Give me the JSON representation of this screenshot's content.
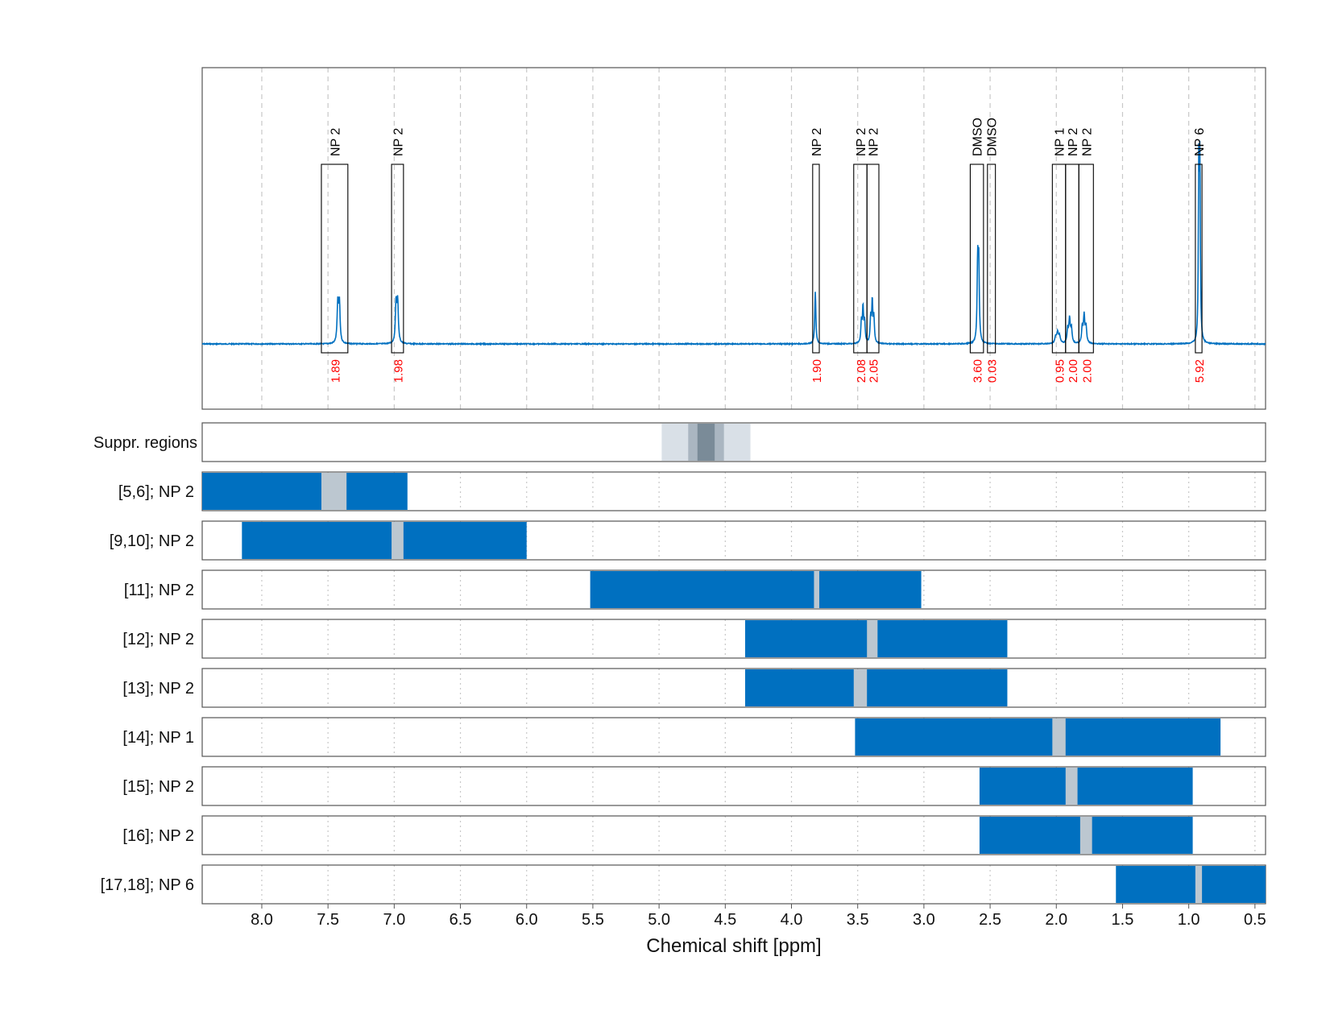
{
  "chart_data": {
    "type": "nmr-spectrum-with-region-bars",
    "xlabel": "Chemical shift [ppm]",
    "xlim": [
      8.45,
      0.42
    ],
    "x_ticks": [
      "8.0",
      "7.5",
      "7.0",
      "6.5",
      "6.0",
      "5.5",
      "5.0",
      "4.5",
      "4.0",
      "3.5",
      "3.0",
      "2.5",
      "2.0",
      "1.5",
      "1.0",
      "0.5"
    ],
    "tick_values": [
      8.0,
      7.5,
      7.0,
      6.5,
      6.0,
      5.5,
      5.0,
      4.5,
      4.0,
      3.5,
      3.0,
      2.5,
      2.0,
      1.5,
      1.0,
      0.5
    ],
    "grid": true,
    "colors": {
      "signal": "#0070c0",
      "integral": "#ff0000",
      "box": "#000000",
      "peak_marker": "#bcc7d0",
      "suppr_light": "#d9e0e7",
      "suppr_mid": "#aab6c1",
      "suppr_dark": "#7a8b98"
    },
    "spectrum": {
      "baseline": 0.0,
      "peaks": [
        {
          "center": 7.42,
          "height": 0.55,
          "width": 0.012,
          "mult": 2,
          "sep": 0.012
        },
        {
          "center": 6.98,
          "height": 0.56,
          "width": 0.012,
          "mult": 2,
          "sep": 0.012
        },
        {
          "center": 3.82,
          "height": 0.72,
          "width": 0.01,
          "mult": 1,
          "sep": 0.0
        },
        {
          "center": 3.46,
          "height": 0.48,
          "width": 0.01,
          "mult": 3,
          "sep": 0.012
        },
        {
          "center": 3.39,
          "height": 0.56,
          "width": 0.01,
          "mult": 3,
          "sep": 0.012
        },
        {
          "center": 2.59,
          "height": 1.05,
          "width": 0.01,
          "mult": 2,
          "sep": 0.008
        },
        {
          "center": 1.99,
          "height": 0.15,
          "width": 0.015,
          "mult": 3,
          "sep": 0.015
        },
        {
          "center": 1.9,
          "height": 0.33,
          "width": 0.012,
          "mult": 3,
          "sep": 0.014
        },
        {
          "center": 1.79,
          "height": 0.37,
          "width": 0.012,
          "mult": 3,
          "sep": 0.014
        },
        {
          "center": 0.92,
          "height": 2.35,
          "width": 0.008,
          "mult": 2,
          "sep": 0.008
        }
      ]
    },
    "annotations": [
      {
        "label": "NP 2",
        "integral": "1.89",
        "ppm_left": 7.55,
        "ppm_right": 7.35
      },
      {
        "label": "NP 2",
        "integral": "1.98",
        "ppm_left": 7.02,
        "ppm_right": 6.93
      },
      {
        "label": "NP 2",
        "integral": "1.90",
        "ppm_left": 3.84,
        "ppm_right": 3.79
      },
      {
        "label": "NP 2",
        "integral": "2.08",
        "ppm_left": 3.53,
        "ppm_right": 3.43
      },
      {
        "label": "NP 2",
        "integral": "2.05",
        "ppm_left": 3.43,
        "ppm_right": 3.34
      },
      {
        "label": "DMSO",
        "integral": "3.60",
        "ppm_left": 2.65,
        "ppm_right": 2.55
      },
      {
        "label": "DMSO",
        "integral": "0.03",
        "ppm_left": 2.52,
        "ppm_right": 2.46
      },
      {
        "label": "NP 1",
        "integral": "0.95",
        "ppm_left": 2.03,
        "ppm_right": 1.93
      },
      {
        "label": "NP 2",
        "integral": "2.00",
        "ppm_left": 1.93,
        "ppm_right": 1.83
      },
      {
        "label": "NP 2",
        "integral": "2.00",
        "ppm_left": 1.83,
        "ppm_right": 1.72
      },
      {
        "label": "NP 6",
        "integral": "5.92",
        "ppm_left": 0.95,
        "ppm_right": 0.9
      }
    ],
    "suppression": {
      "label": "Suppr. regions",
      "bands": [
        {
          "from": 4.98,
          "to": 4.31,
          "level": "light"
        },
        {
          "from": 4.78,
          "to": 4.51,
          "level": "mid"
        },
        {
          "from": 4.71,
          "to": 4.58,
          "level": "dark"
        }
      ]
    },
    "regions": [
      {
        "label": "[5,6]; NP 2",
        "from": 8.45,
        "to": 6.9,
        "marker_from": 7.55,
        "marker_to": 7.36
      },
      {
        "label": "[9,10]; NP 2",
        "from": 8.15,
        "to": 6.0,
        "marker_from": 7.02,
        "marker_to": 6.93
      },
      {
        "label": "[11]; NP 2",
        "from": 5.52,
        "to": 3.02,
        "marker_from": 3.83,
        "marker_to": 3.79
      },
      {
        "label": "[12]; NP 2",
        "from": 4.35,
        "to": 2.37,
        "marker_from": 3.43,
        "marker_to": 3.35
      },
      {
        "label": "[13]; NP 2",
        "from": 4.35,
        "to": 2.37,
        "marker_from": 3.53,
        "marker_to": 3.43
      },
      {
        "label": "[14]; NP 1",
        "from": 3.52,
        "to": 0.76,
        "marker_from": 2.03,
        "marker_to": 1.93
      },
      {
        "label": "[15]; NP 2",
        "from": 2.58,
        "to": 0.97,
        "marker_from": 1.93,
        "marker_to": 1.84
      },
      {
        "label": "[16]; NP 2",
        "from": 2.58,
        "to": 0.97,
        "marker_from": 1.82,
        "marker_to": 1.73
      },
      {
        "label": "[17,18]; NP 6",
        "from": 1.55,
        "to": 0.42,
        "marker_from": 0.95,
        "marker_to": 0.9
      }
    ]
  }
}
